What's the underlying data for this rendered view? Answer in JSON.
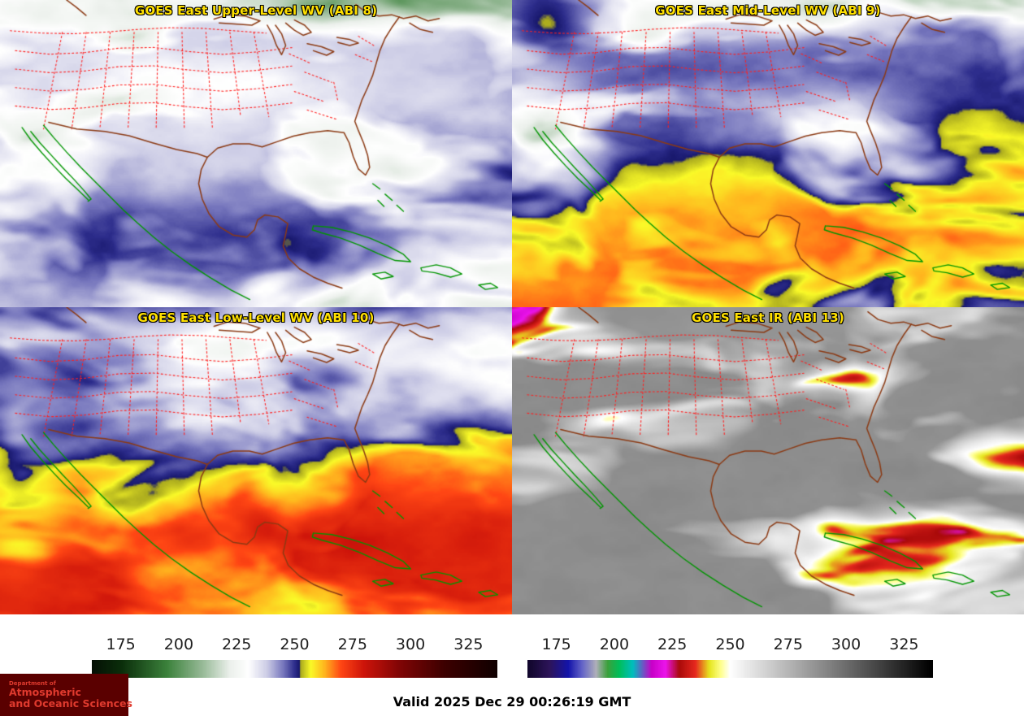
{
  "colors": {
    "title_text": "#ffe000",
    "title_outline": "#000000",
    "state_border": "#ff2020",
    "coastline": "#8b3a14",
    "island_coastline": "#009500",
    "tick_text": "#1f1f1f",
    "logo_bg": "#5a0000",
    "logo_text": "#e03a2e",
    "valid_text": "#000000"
  },
  "panels": [
    {
      "id": "upper_wv",
      "title": "GOES East Upper-Level WV (ABI 8)"
    },
    {
      "id": "mid_wv",
      "title": "GOES East Mid-Level WV (ABI 9)"
    },
    {
      "id": "low_wv",
      "title": "GOES East Low-Level WV (ABI 10)"
    },
    {
      "id": "ir",
      "title": "GOES East IR (ABI 13)"
    }
  ],
  "colorbars": [
    {
      "id": "wv",
      "ticks": [
        175,
        200,
        225,
        250,
        275,
        300,
        325
      ],
      "range": [
        162.5,
        337.5
      ]
    },
    {
      "id": "ir",
      "ticks": [
        175,
        200,
        225,
        250,
        275,
        300,
        325
      ],
      "range": [
        162.5,
        337.5
      ]
    }
  ],
  "footer": {
    "valid_time": "Valid 2025 Dec 29 00:26:19 GMT",
    "logo": {
      "line1": "Department of",
      "line2": "Atmospheric",
      "line3": "and Oceanic Sciences"
    }
  }
}
